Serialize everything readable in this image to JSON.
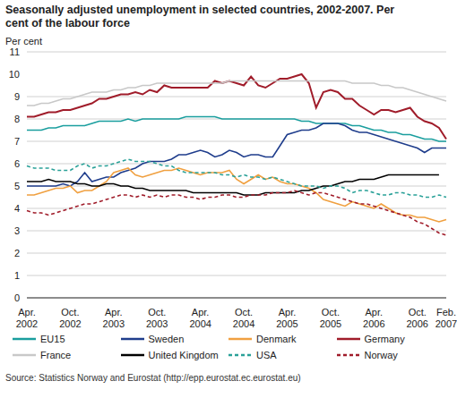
{
  "chart_data": {
    "type": "line",
    "title": "Seasonally adjusted unemployment in selected countries, 2002-2007. Per cent of the labour force",
    "y_label": "Per cent",
    "source": "Source: Statistics Norway and Eurostat (http://epp.eurostat.ec.eurostat.eu)",
    "categories": [
      "Apr. 2002",
      null,
      null,
      null,
      null,
      null,
      "Oct. 2002",
      null,
      null,
      null,
      null,
      null,
      "Apr. 2003",
      null,
      null,
      null,
      null,
      null,
      "Oct. 2003",
      null,
      null,
      null,
      null,
      null,
      "Apr. 2004",
      null,
      null,
      null,
      null,
      null,
      "Oct. 2004",
      null,
      null,
      null,
      null,
      null,
      "Apr. 2005",
      null,
      null,
      null,
      null,
      null,
      "Oct. 2005",
      null,
      null,
      null,
      null,
      null,
      "Apr. 2006",
      null,
      null,
      null,
      null,
      null,
      "Oct. 2006",
      null,
      null,
      null,
      "Feb. 2007"
    ],
    "ylim": [
      0,
      11
    ],
    "yticks": [
      0,
      1,
      2,
      3,
      4,
      5,
      6,
      7,
      8,
      9,
      10,
      11
    ],
    "grid": true,
    "legend": "bottom",
    "series": [
      {
        "name": "EU15",
        "color": "#1a9e9e",
        "line_style": "solid",
        "values": [
          7.5,
          7.5,
          7.5,
          7.6,
          7.6,
          7.7,
          7.7,
          7.7,
          7.7,
          7.8,
          7.9,
          7.9,
          7.9,
          7.9,
          8.0,
          7.9,
          8.0,
          8.0,
          8.0,
          8.0,
          8.0,
          8.0,
          8.1,
          8.1,
          8.1,
          8.1,
          8.1,
          8.0,
          8.0,
          8.0,
          8.0,
          8.0,
          8.0,
          8.0,
          8.0,
          8.0,
          8.0,
          8.0,
          7.9,
          7.9,
          7.8,
          7.8,
          7.8,
          7.8,
          7.8,
          7.7,
          7.7,
          7.6,
          7.5,
          7.5,
          7.4,
          7.4,
          7.3,
          7.3,
          7.2,
          7.1,
          7.1,
          7.0,
          7.0
        ]
      },
      {
        "name": "Sweden",
        "color": "#1f3d8c",
        "line_style": "solid",
        "values": [
          5.0,
          5.0,
          5.0,
          5.0,
          5.0,
          5.1,
          5.0,
          5.2,
          5.6,
          5.2,
          5.3,
          5.4,
          5.4,
          5.6,
          5.7,
          5.8,
          6.0,
          6.1,
          6.1,
          6.1,
          6.2,
          6.4,
          6.4,
          6.5,
          6.6,
          6.5,
          6.3,
          6.4,
          6.6,
          6.5,
          6.3,
          6.4,
          6.4,
          6.3,
          6.3,
          6.8,
          7.3,
          7.4,
          7.5,
          7.5,
          7.6,
          7.8,
          7.8,
          7.8,
          7.7,
          7.5,
          7.4,
          7.4,
          7.3,
          7.2,
          7.1,
          7.0,
          6.9,
          6.8,
          6.7,
          6.5,
          6.7,
          6.7,
          6.7
        ]
      },
      {
        "name": "Denmark",
        "color": "#f0a040",
        "line_style": "solid",
        "values": [
          4.6,
          4.6,
          4.7,
          4.8,
          4.9,
          4.9,
          5.0,
          4.7,
          4.8,
          4.8,
          5.0,
          5.2,
          5.6,
          5.7,
          5.8,
          5.5,
          5.4,
          5.5,
          5.6,
          5.7,
          5.7,
          5.8,
          5.7,
          5.6,
          5.5,
          5.6,
          5.6,
          5.6,
          5.7,
          5.3,
          5.1,
          5.3,
          5.5,
          5.3,
          5.4,
          5.2,
          5.1,
          5.1,
          5.0,
          4.9,
          4.7,
          4.4,
          4.3,
          4.2,
          4.1,
          4.3,
          4.2,
          4.1,
          4.0,
          4.2,
          4.0,
          3.8,
          3.7,
          3.7,
          3.6,
          3.6,
          3.5,
          3.4,
          3.5
        ]
      },
      {
        "name": "Germany",
        "color": "#a01c2a",
        "line_style": "solid",
        "values": [
          8.1,
          8.1,
          8.2,
          8.3,
          8.3,
          8.4,
          8.4,
          8.5,
          8.6,
          8.7,
          8.9,
          8.9,
          9.0,
          9.1,
          9.1,
          9.2,
          9.1,
          9.3,
          9.2,
          9.5,
          9.4,
          9.4,
          9.4,
          9.4,
          9.4,
          9.4,
          9.7,
          9.6,
          9.7,
          9.6,
          9.5,
          9.9,
          9.5,
          9.4,
          9.6,
          9.8,
          9.8,
          9.9,
          10.0,
          9.6,
          8.5,
          9.2,
          9.3,
          9.2,
          8.9,
          8.9,
          8.6,
          8.4,
          8.2,
          8.4,
          8.4,
          8.3,
          8.4,
          8.5,
          8.1,
          7.9,
          7.8,
          7.6,
          7.1
        ]
      },
      {
        "name": "France",
        "color": "#c8c8c8",
        "line_style": "solid",
        "values": [
          8.6,
          8.6,
          8.7,
          8.7,
          8.8,
          8.9,
          8.9,
          9.0,
          9.1,
          9.2,
          9.2,
          9.2,
          9.3,
          9.3,
          9.4,
          9.4,
          9.5,
          9.5,
          9.6,
          9.6,
          9.6,
          9.6,
          9.6,
          9.6,
          9.6,
          9.6,
          9.6,
          9.6,
          9.7,
          9.7,
          9.7,
          9.7,
          9.7,
          9.7,
          9.7,
          9.7,
          9.7,
          9.7,
          9.7,
          9.7,
          9.7,
          9.7,
          9.7,
          9.7,
          9.7,
          9.6,
          9.6,
          9.6,
          9.6,
          9.5,
          9.5,
          9.4,
          9.4,
          9.3,
          9.2,
          9.1,
          9.0,
          8.9,
          8.8
        ]
      },
      {
        "name": "United Kingdom",
        "color": "#000000",
        "line_style": "solid",
        "values": [
          5.2,
          5.2,
          5.2,
          5.3,
          5.2,
          5.2,
          5.2,
          5.1,
          5.1,
          5.0,
          5.0,
          5.1,
          5.1,
          5.0,
          5.0,
          4.9,
          4.9,
          4.8,
          4.8,
          4.8,
          4.8,
          4.8,
          4.8,
          4.7,
          4.7,
          4.7,
          4.7,
          4.7,
          4.7,
          4.7,
          4.6,
          4.6,
          4.6,
          4.7,
          4.7,
          4.7,
          4.7,
          4.7,
          4.8,
          4.8,
          4.9,
          5.0,
          5.0,
          5.1,
          5.2,
          5.2,
          5.3,
          5.3,
          5.3,
          5.4,
          5.5,
          5.5,
          5.5,
          5.5,
          5.5,
          5.5,
          5.5,
          5.5,
          null
        ]
      },
      {
        "name": "USA",
        "color": "#2aa198",
        "line_style": "dashed",
        "values": [
          5.9,
          5.8,
          5.8,
          5.8,
          5.7,
          5.7,
          5.7,
          5.9,
          6.0,
          5.8,
          5.9,
          5.9,
          6.0,
          6.1,
          6.2,
          6.1,
          6.1,
          6.1,
          6.0,
          5.9,
          5.9,
          5.7,
          5.6,
          5.6,
          5.6,
          5.6,
          5.6,
          5.5,
          5.5,
          5.4,
          5.5,
          5.4,
          5.4,
          5.3,
          5.4,
          5.3,
          5.2,
          5.1,
          5.0,
          5.0,
          5.0,
          4.9,
          5.0,
          5.0,
          4.9,
          4.7,
          4.8,
          4.8,
          4.7,
          4.6,
          4.6,
          4.7,
          4.7,
          4.6,
          4.6,
          4.5,
          4.5,
          4.6,
          4.5
        ]
      },
      {
        "name": "Norway",
        "color": "#a01c2a",
        "line_style": "dashed",
        "values": [
          3.9,
          3.8,
          3.8,
          3.7,
          3.8,
          3.9,
          4.0,
          4.1,
          4.2,
          4.2,
          4.3,
          4.4,
          4.5,
          4.6,
          4.6,
          4.5,
          4.6,
          4.5,
          4.6,
          4.5,
          4.6,
          4.6,
          4.5,
          4.5,
          4.4,
          4.5,
          4.5,
          4.6,
          4.6,
          4.5,
          4.5,
          4.6,
          4.6,
          4.6,
          4.7,
          4.7,
          4.7,
          4.8,
          4.7,
          4.6,
          4.7,
          4.7,
          4.6,
          4.5,
          4.4,
          4.3,
          4.2,
          4.2,
          4.1,
          4.0,
          3.9,
          3.8,
          3.7,
          3.6,
          3.4,
          3.3,
          3.1,
          2.9,
          2.8
        ]
      }
    ]
  }
}
